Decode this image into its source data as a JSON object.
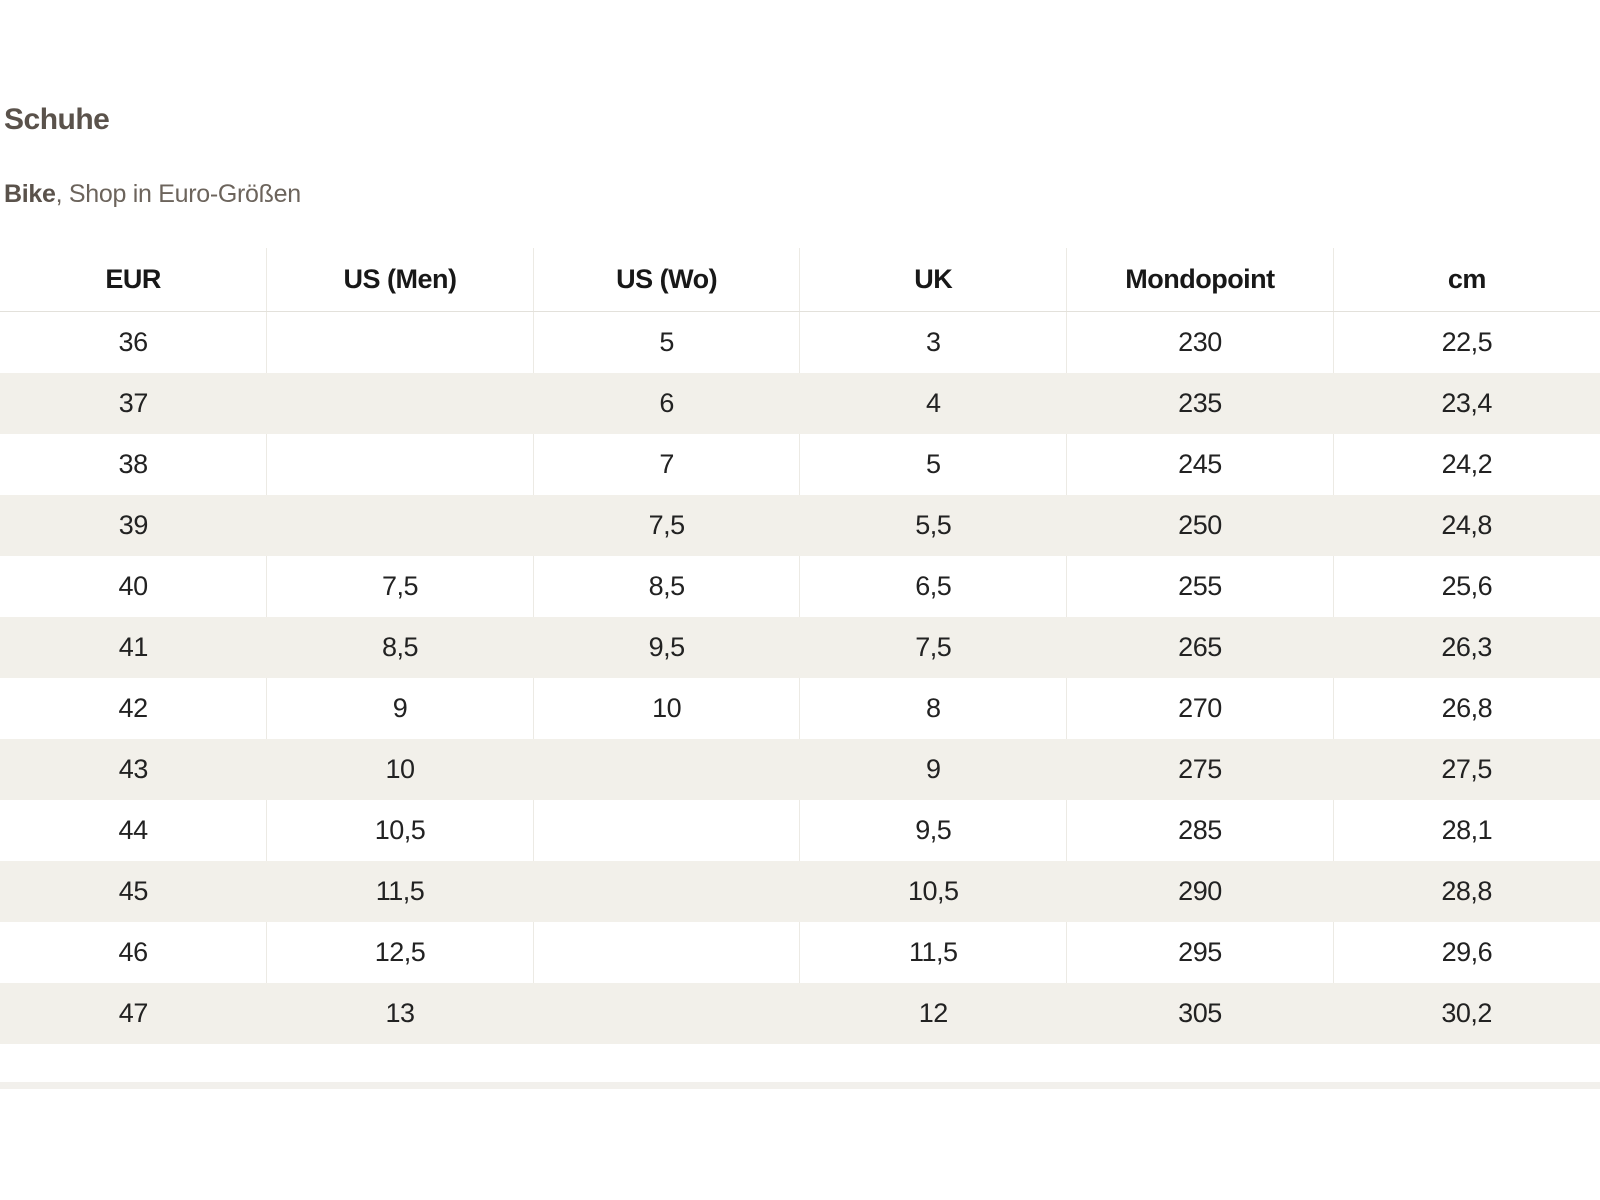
{
  "header": {
    "title": "Schuhe",
    "subtitle_bold": "Bike",
    "subtitle_rest": ", Shop in Euro-Größen"
  },
  "table": {
    "columns": [
      "EUR",
      "US (Men)",
      "US (Wo)",
      "UK",
      "Mondopoint",
      "cm"
    ],
    "rows": [
      [
        "36",
        "",
        "5",
        "3",
        "230",
        "22,5"
      ],
      [
        "37",
        "",
        "6",
        "4",
        "235",
        "23,4"
      ],
      [
        "38",
        "",
        "7",
        "5",
        "245",
        "24,2"
      ],
      [
        "39",
        "",
        "7,5",
        "5,5",
        "250",
        "24,8"
      ],
      [
        "40",
        "7,5",
        "8,5",
        "6,5",
        "255",
        "25,6"
      ],
      [
        "41",
        "8,5",
        "9,5",
        "7,5",
        "265",
        "26,3"
      ],
      [
        "42",
        "9",
        "10",
        "8",
        "270",
        "26,8"
      ],
      [
        "43",
        "10",
        "",
        "9",
        "275",
        "27,5"
      ],
      [
        "44",
        "10,5",
        "",
        "9,5",
        "285",
        "28,1"
      ],
      [
        "45",
        "11,5",
        "",
        "10,5",
        "290",
        "28,8"
      ],
      [
        "46",
        "12,5",
        "",
        "11,5",
        "295",
        "29,6"
      ],
      [
        "47",
        "13",
        "",
        "12",
        "305",
        "30,2"
      ]
    ]
  },
  "colors": {
    "stripe": "#f2f0ea",
    "separator": "#eceae4",
    "header_underline": "#e3e1db",
    "title_text": "#5a524b",
    "subtitle_text": "#6c645c",
    "body_text": "#222222",
    "header_text": "#181818",
    "background": "#ffffff"
  }
}
